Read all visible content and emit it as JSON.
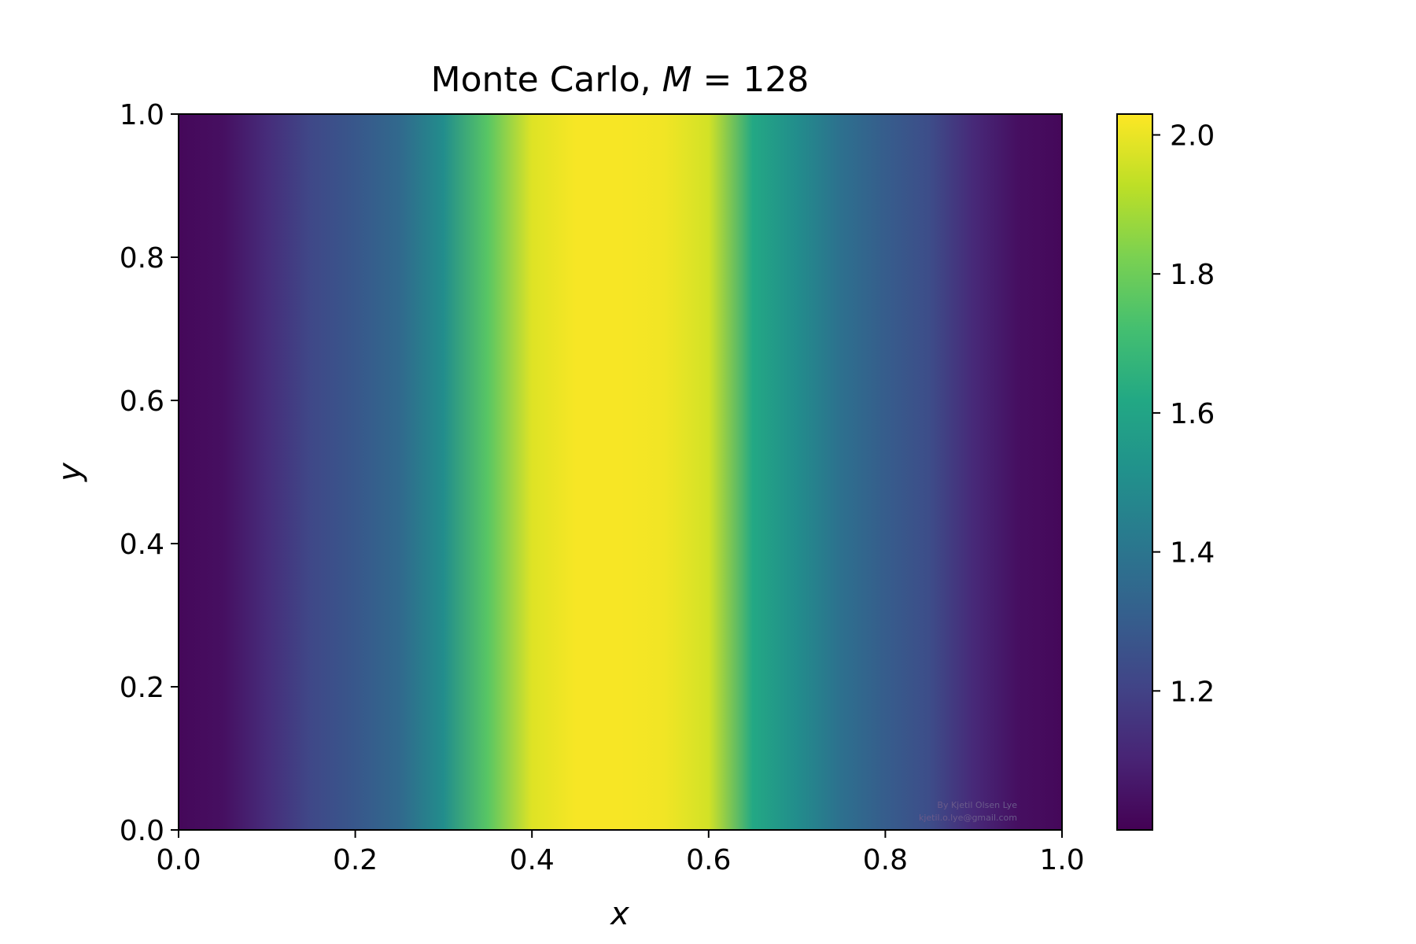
{
  "chart_data": {
    "type": "heatmap",
    "title_prefix": "Monte Carlo, ",
    "title_var": "M",
    "title_eq": " = 128",
    "xlabel": "x",
    "ylabel": "y",
    "xlim": [
      0.0,
      1.0
    ],
    "ylim": [
      0.0,
      1.0
    ],
    "xticks": [
      "0.0",
      "0.2",
      "0.4",
      "0.6",
      "0.8",
      "1.0"
    ],
    "yticks": [
      "0.0",
      "0.2",
      "0.4",
      "0.6",
      "0.8",
      "1.0"
    ],
    "colorbar": {
      "colormap": "viridis",
      "range": [
        1.0,
        2.03
      ],
      "ticks": [
        "1.2",
        "1.4",
        "1.6",
        "1.8",
        "2.0"
      ]
    },
    "profile_x": [
      0.0,
      0.05,
      0.1,
      0.15,
      0.2,
      0.25,
      0.3,
      0.35,
      0.4,
      0.45,
      0.5,
      0.55,
      0.6,
      0.65,
      0.7,
      0.75,
      0.8,
      0.85,
      0.9,
      0.95,
      1.0
    ],
    "profile_value": [
      1.02,
      1.04,
      1.13,
      1.22,
      1.28,
      1.35,
      1.5,
      1.76,
      1.98,
      2.02,
      2.02,
      2.01,
      1.96,
      1.62,
      1.5,
      1.38,
      1.3,
      1.24,
      1.12,
      1.04,
      1.02
    ],
    "watermark": [
      "By Kjetil Olsen Lye",
      "kjetil.o.lye@gmail.com"
    ]
  }
}
